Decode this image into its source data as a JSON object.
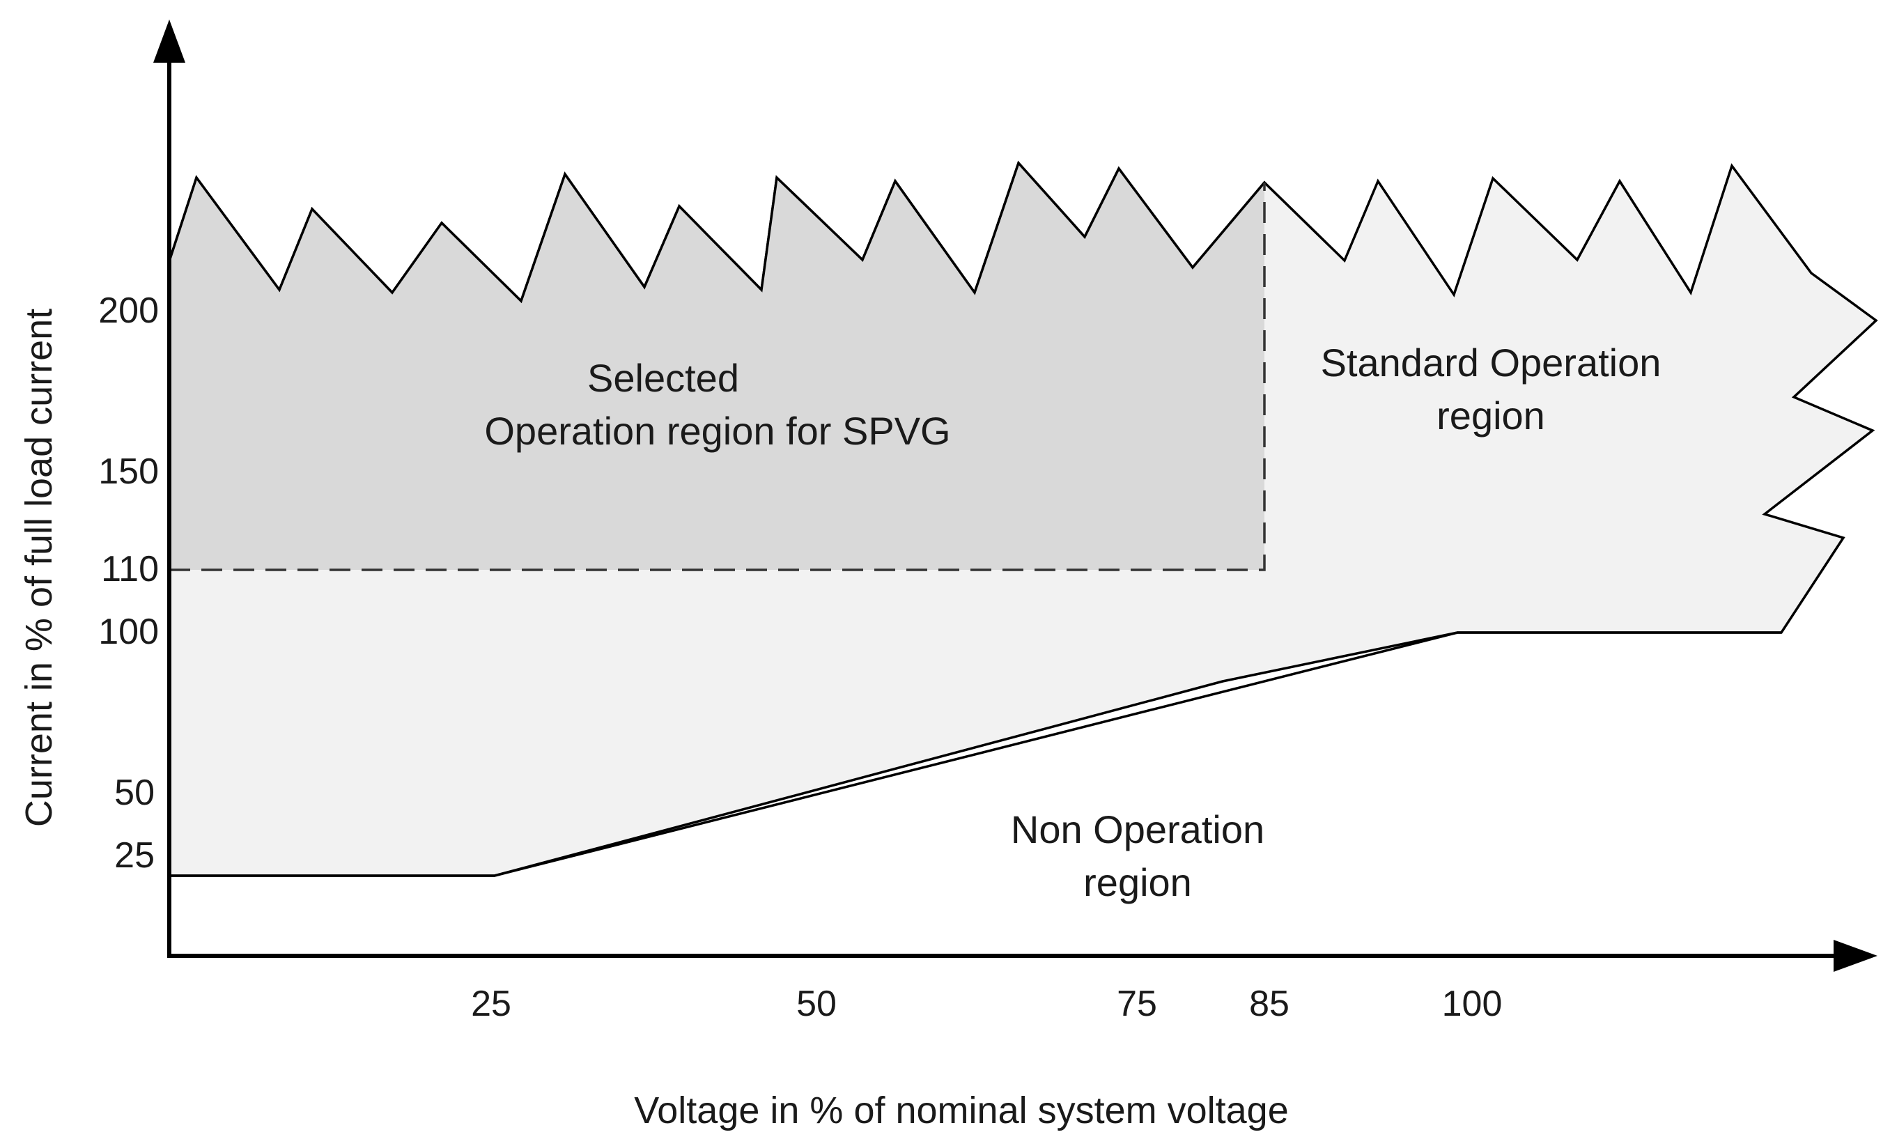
{
  "chart_data": {
    "type": "area",
    "title": "",
    "xlabel": "Voltage in % of nominal system voltage",
    "ylabel": "Current in % of full load current",
    "x_ticks": [
      "25",
      "50",
      "75",
      "85",
      "100"
    ],
    "y_ticks": [
      "200",
      "150",
      "110",
      "100",
      "50",
      "25"
    ],
    "regions": [
      {
        "name": "selected",
        "lines": [
          "Selected",
          "Operation region for SPVG"
        ],
        "x_range": [
          0,
          85
        ],
        "y_range": [
          110,
          "above 200"
        ],
        "fill": "#d9d9d9",
        "border": "dashed"
      },
      {
        "name": "standard",
        "lines": [
          "Standard Operation",
          "region"
        ],
        "fill": "#f2f2f2"
      },
      {
        "name": "non-operation",
        "lines": [
          "Non Operation",
          "region"
        ],
        "fill": "#ffffff"
      }
    ],
    "lower_boundary": [
      {
        "x": 0,
        "y": 25
      },
      {
        "x": 25,
        "y": 25
      },
      {
        "x": 100,
        "y": 100
      }
    ]
  }
}
